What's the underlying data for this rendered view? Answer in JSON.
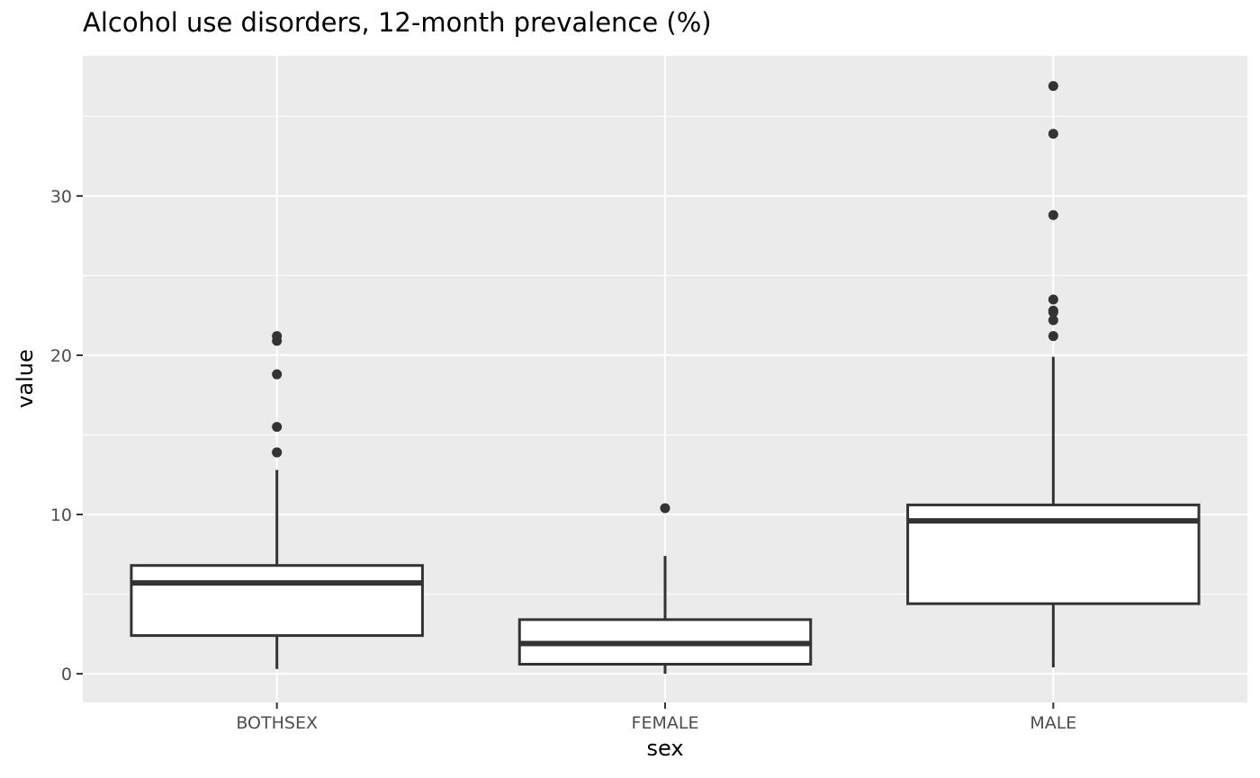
{
  "chart_data": {
    "type": "boxplot",
    "title": "Alcohol use disorders, 12-month prevalence (%)",
    "xlabel": "sex",
    "ylabel": "value",
    "categories": [
      "BOTHSEX",
      "FEMALE",
      "MALE"
    ],
    "ylim": [
      -1.8,
      38.8
    ],
    "yticks": [
      0,
      10,
      20,
      30
    ],
    "grid": true,
    "panel_background": "#EBEBEB",
    "box_fill": "#FFFFFF",
    "box_stroke": "#333333",
    "boxes": [
      {
        "category": "BOTHSEX",
        "whisker_low": 0.3,
        "q1": 2.4,
        "median": 5.7,
        "q3": 6.8,
        "whisker_high": 12.8,
        "outliers": [
          13.9,
          13.9,
          15.5,
          18.8,
          20.9,
          21.2
        ]
      },
      {
        "category": "FEMALE",
        "whisker_low": 0.0,
        "q1": 0.6,
        "median": 1.9,
        "q3": 3.4,
        "whisker_high": 7.4,
        "outliers": [
          10.4
        ]
      },
      {
        "category": "MALE",
        "whisker_low": 0.4,
        "q1": 4.4,
        "median": 9.6,
        "q3": 10.6,
        "whisker_high": 19.9,
        "outliers": [
          21.2,
          22.2,
          22.7,
          22.8,
          23.5,
          28.8,
          33.9,
          36.9
        ]
      }
    ]
  }
}
